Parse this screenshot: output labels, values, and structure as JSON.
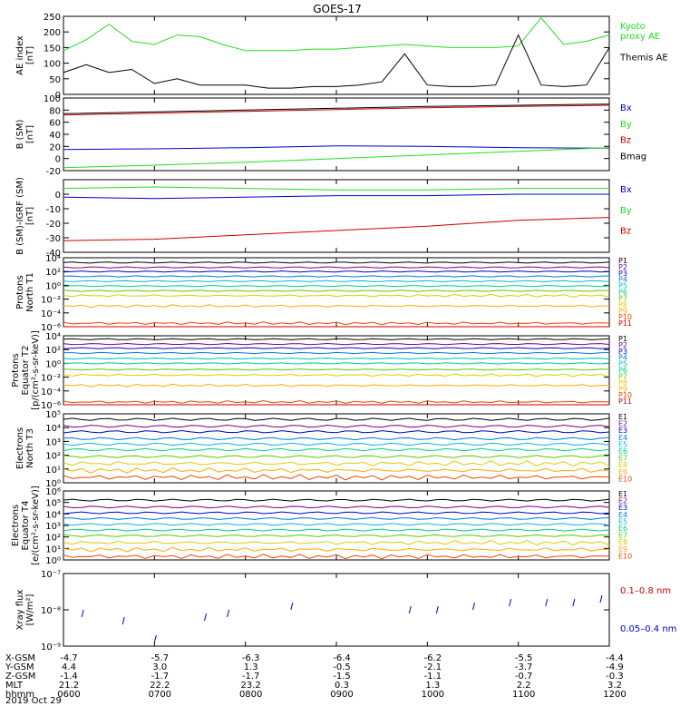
{
  "title": "GOES-17",
  "date_label": "2019 Oct 29",
  "time_axis": {
    "tick_labels": [
      "0600",
      "0700",
      "0800",
      "0900",
      "1000",
      "1100",
      "1200"
    ],
    "rows": [
      {
        "label": "X-GSM",
        "values": [
          "-4.7",
          "-5.7",
          "-6.3",
          "-6.4",
          "-6.2",
          "-5.5",
          "-4.4"
        ]
      },
      {
        "label": "Y-GSM",
        "values": [
          "4.4",
          "3.0",
          "1.3",
          "-0.5",
          "-2.1",
          "-3.7",
          "-4.9"
        ]
      },
      {
        "label": "Z-GSM",
        "values": [
          "-1.4",
          "-1.7",
          "-1.7",
          "-1.5",
          "-1.1",
          "-0.7",
          "-0.3"
        ]
      },
      {
        "label": "MLT",
        "values": [
          "21.2",
          "22.2",
          "23.2",
          "0.3",
          "1.3",
          "2.2",
          "3.2"
        ]
      },
      {
        "label": "hhmm",
        "values": [
          "0600",
          "0700",
          "0800",
          "0900",
          "1000",
          "1100",
          "1200"
        ]
      }
    ]
  },
  "colors": {
    "green": "#22dd22",
    "blue": "#0000cc",
    "red": "#cc0000",
    "black": "#000000",
    "p_channels": [
      "#000000",
      "#7a007a",
      "#0000cc",
      "#0077dd",
      "#00bbcc",
      "#00cc88",
      "#55cc00",
      "#ddcc00",
      "#ffaa00",
      "#ee4400",
      "#cc0000"
    ],
    "e_channels": [
      "#000000",
      "#7a007a",
      "#0000cc",
      "#0077dd",
      "#00bbcc",
      "#00cc88",
      "#55cc00",
      "#ddcc00",
      "#ffaa00",
      "#ee4400"
    ]
  },
  "chart_data": [
    {
      "type": "line",
      "panel": "ae",
      "ylabel": "AE index\n[nT]",
      "ylim": [
        0,
        250
      ],
      "yticks": [
        0,
        50,
        100,
        150,
        200,
        250
      ],
      "tick_labels": [
        "0",
        "50",
        "100",
        "150",
        "200",
        "250"
      ],
      "x": [
        6.0,
        6.25,
        6.5,
        6.75,
        7.0,
        7.25,
        7.5,
        7.75,
        8.0,
        8.25,
        8.5,
        8.75,
        9.0,
        9.25,
        9.5,
        9.75,
        10.0,
        10.25,
        10.5,
        10.75,
        11.0,
        11.25,
        11.5,
        11.75,
        12.0
      ],
      "series": [
        {
          "name": "Kyoto\nproxy AE",
          "color_key": "green",
          "values": [
            140,
            175,
            225,
            170,
            160,
            190,
            185,
            160,
            140,
            140,
            140,
            145,
            145,
            150,
            155,
            160,
            155,
            150,
            150,
            150,
            155,
            245,
            160,
            170,
            190
          ]
        },
        {
          "name": "Themis AE",
          "color_key": "black",
          "values": [
            70,
            95,
            70,
            80,
            35,
            50,
            30,
            30,
            30,
            20,
            20,
            25,
            25,
            30,
            40,
            130,
            30,
            25,
            25,
            30,
            190,
            30,
            25,
            30,
            150
          ]
        }
      ]
    },
    {
      "type": "line",
      "panel": "b_sm",
      "ylabel": "B (SM)\n[nT]",
      "ylim": [
        -20,
        100
      ],
      "yticks": [
        -20,
        0,
        20,
        40,
        60,
        80,
        100
      ],
      "tick_labels": [
        "-20",
        "0",
        "20",
        "40",
        "60",
        "80",
        "100"
      ],
      "x": [
        6.0,
        7.0,
        8.0,
        9.0,
        10.0,
        11.0,
        12.0
      ],
      "series": [
        {
          "name": "Bx",
          "color_key": "blue",
          "values": [
            15,
            16,
            18,
            21,
            20,
            18,
            17
          ]
        },
        {
          "name": "By",
          "color_key": "green",
          "values": [
            -15,
            -11,
            -6,
            0,
            6,
            12,
            18
          ]
        },
        {
          "name": "Bz",
          "color_key": "red",
          "values": [
            72,
            75,
            78,
            81,
            84,
            86,
            88
          ]
        },
        {
          "name": "Bmag",
          "color_key": "black",
          "values": [
            74,
            77,
            80,
            83,
            86,
            88,
            90
          ]
        }
      ]
    },
    {
      "type": "line",
      "panel": "b_igrf",
      "ylabel": "B (SM)-IGRF (SM)\n[nT]",
      "ylim": [
        -40,
        10
      ],
      "yticks": [
        -40,
        -30,
        -20,
        -10,
        0
      ],
      "tick_labels": [
        "-40",
        "-30",
        "-20",
        "-10",
        "0"
      ],
      "x": [
        6.0,
        7.0,
        8.0,
        9.0,
        10.0,
        11.0,
        12.0
      ],
      "series": [
        {
          "name": "Bx",
          "color_key": "blue",
          "values": [
            -2,
            -3,
            -2,
            -1,
            -1,
            0,
            0
          ]
        },
        {
          "name": "By",
          "color_key": "green",
          "values": [
            4,
            5,
            4,
            3,
            3,
            4,
            4
          ]
        },
        {
          "name": "Bz",
          "color_key": "red",
          "values": [
            -32,
            -31,
            -28,
            -25,
            -22,
            -18,
            -16
          ]
        }
      ]
    },
    {
      "type": "line",
      "panel": "protons_north",
      "ylabel": "Protons\nNorth T1",
      "yscale": "log",
      "ylim": [
        -6,
        4
      ],
      "yticks": [
        -6,
        -4,
        -2,
        0,
        2,
        4
      ],
      "tick_labels": [
        "10⁻⁶",
        "10⁻⁴",
        "10⁻²",
        "10⁰",
        "10²",
        "10⁴"
      ],
      "series_names": [
        "P1",
        "P2",
        "P3",
        "P4",
        "P5",
        "P6",
        "P7",
        "P8",
        "P9",
        "P10",
        "P11"
      ],
      "log_levels": [
        3.3,
        2.6,
        2.0,
        1.3,
        0.6,
        -0.1,
        -0.8,
        -1.5,
        -3.0,
        -5.5,
        -6.5
      ]
    },
    {
      "type": "line",
      "panel": "protons_equator",
      "ylabel": "Protons\nEquator T2\n[p/(cm²-s-sr-keV)]",
      "yscale": "log",
      "ylim": [
        -6,
        4
      ],
      "yticks": [
        -6,
        -4,
        -2,
        0,
        2,
        4
      ],
      "tick_labels": [
        "10⁻⁶",
        "10⁻⁴",
        "10⁻²",
        "10⁰",
        "10²",
        "10⁴"
      ],
      "series_names": [
        "P1",
        "P2",
        "P3",
        "P4",
        "P5",
        "P6",
        "P7",
        "P8",
        "P9",
        "P10",
        "P11"
      ],
      "log_levels": [
        3.5,
        2.8,
        2.2,
        1.5,
        0.7,
        0.0,
        -0.9,
        -1.7,
        -3.2,
        -5.6,
        -6.6
      ]
    },
    {
      "type": "line",
      "panel": "electrons_north",
      "ylabel": "Electrons\nNorth T3",
      "yscale": "log",
      "ylim": [
        0,
        5
      ],
      "yticks": [
        0,
        1,
        2,
        3,
        4,
        5
      ],
      "tick_labels": [
        "10⁰",
        "10¹",
        "10²",
        "10³",
        "10⁴",
        "10⁵"
      ],
      "series_names": [
        "E1",
        "E2",
        "E3",
        "E4",
        "E5",
        "E6",
        "E7",
        "E8",
        "E9",
        "E10"
      ],
      "log_levels": [
        4.6,
        4.1,
        3.7,
        3.2,
        2.8,
        2.4,
        1.9,
        1.4,
        0.9,
        0.4
      ]
    },
    {
      "type": "line",
      "panel": "electrons_equator",
      "ylabel": "Electrons\nEquator T4\n[e/(cm²-s-sr-keV)]",
      "yscale": "log",
      "ylim": [
        0,
        6
      ],
      "yticks": [
        0,
        1,
        2,
        3,
        4,
        5,
        6
      ],
      "tick_labels": [
        "10⁰",
        "10¹",
        "10²",
        "10³",
        "10⁴",
        "10⁵",
        "10⁶"
      ],
      "series_names": [
        "E1",
        "E2",
        "E3",
        "E4",
        "E5",
        "E6",
        "E7",
        "E8",
        "E9",
        "E10"
      ],
      "log_levels": [
        5.2,
        4.6,
        4.1,
        3.6,
        3.1,
        2.6,
        2.1,
        1.5,
        0.9,
        0.3
      ]
    },
    {
      "type": "scatter",
      "panel": "xray",
      "ylabel": "Xray flux\n[W/m²]",
      "yscale": "log",
      "ylim": [
        -9,
        -7
      ],
      "yticks": [
        -9,
        -8,
        -7
      ],
      "tick_labels": [
        "10⁻⁹",
        "10⁻⁸",
        "10⁻⁷"
      ],
      "series": [
        {
          "name": "0.1–0.8 nm",
          "color_key": "red",
          "x": [],
          "log_values": []
        },
        {
          "name": "0.05–0.4 nm",
          "color_key": "blue",
          "x": [
            6.2,
            6.65,
            7.0,
            7.55,
            7.8,
            8.5,
            9.8,
            10.1,
            10.5,
            10.9,
            11.3,
            11.6,
            11.9
          ],
          "log_values": [
            -8.2,
            -8.4,
            -8.9,
            -8.3,
            -8.2,
            -8.0,
            -8.1,
            -8.1,
            -8.0,
            -7.9,
            -7.9,
            -7.9,
            -7.8
          ]
        }
      ]
    }
  ]
}
